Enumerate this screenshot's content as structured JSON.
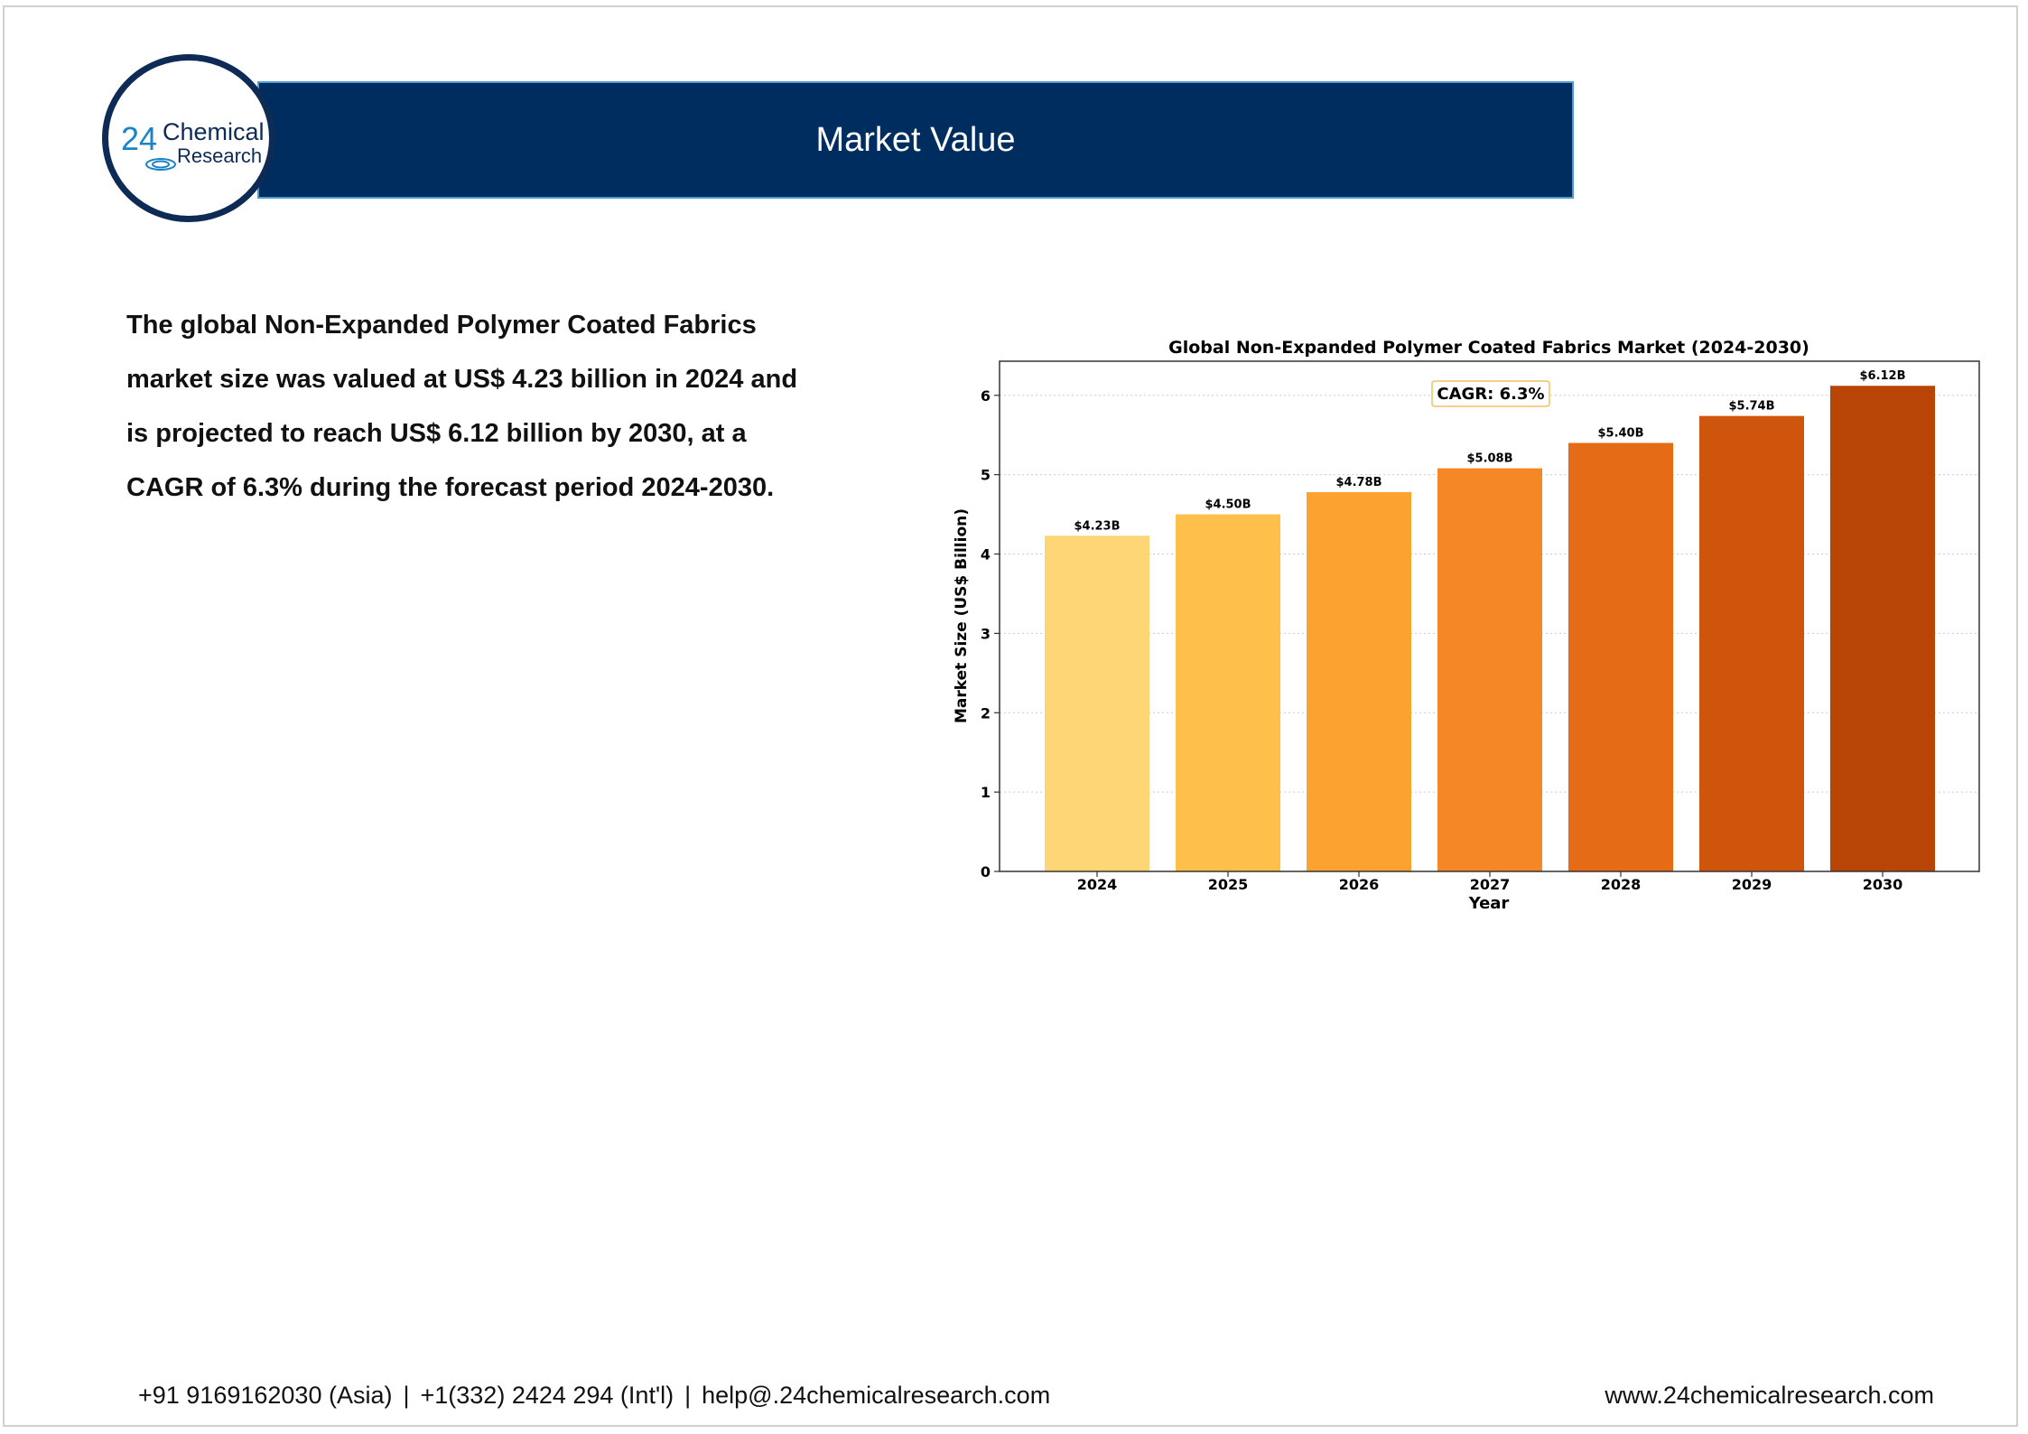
{
  "header": {
    "title": "Market Value",
    "logo": {
      "number": "24",
      "word1": "Chemical",
      "word2": "Research"
    }
  },
  "summary": "The global Non-Expanded Polymer Coated Fabrics market size was valued at US$ 4.23 billion in 2024 and is projected to reach US$ 6.12 billion by 2030, at a CAGR of 6.3% during the forecast period 2024-2030.",
  "footer": {
    "phone_asia": "+91 9169162030 (Asia)",
    "phone_intl": "+1(332) 2424 294 (Int'l)",
    "email": "help@.24chemicalresearch.com",
    "separator": "|",
    "website": "www.24chemicalresearch.com"
  },
  "colors": {
    "header_bg": "#002d5f",
    "bar_colors": [
      "#fed676",
      "#fec04b",
      "#fca231",
      "#f58824",
      "#e56b16",
      "#d0550c",
      "#b84406"
    ]
  },
  "chart_data": {
    "type": "bar",
    "title": "Global Non-Expanded Polymer Coated Fabrics Market (2024-2030)",
    "xlabel": "Year",
    "ylabel": "Market Size (US$ Billion)",
    "categories": [
      "2024",
      "2025",
      "2026",
      "2027",
      "2028",
      "2029",
      "2030"
    ],
    "values": [
      4.23,
      4.5,
      4.78,
      5.08,
      5.4,
      5.74,
      6.12
    ],
    "data_labels": [
      "$4.23B",
      "$4.50B",
      "$4.78B",
      "$5.08B",
      "$5.40B",
      "$5.74B",
      "$6.12B"
    ],
    "yticks": [
      "0",
      "1",
      "2",
      "3",
      "4",
      "5",
      "6"
    ],
    "ylim": [
      0,
      6.43
    ],
    "grid": "horizontal dotted",
    "annotation": "CAGR: 6.3%"
  }
}
